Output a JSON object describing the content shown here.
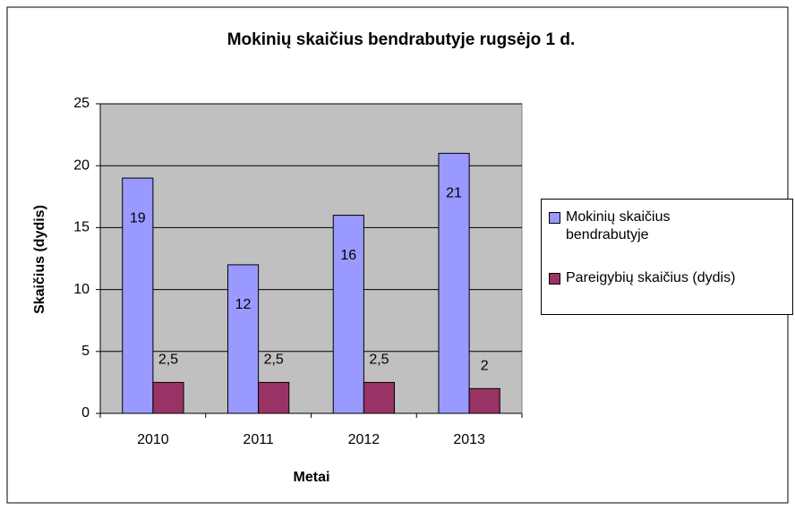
{
  "chart_data": {
    "type": "bar",
    "title": "Mokinių skaičius bendrabutyje rugsėjo 1 d.",
    "x_label": "Metai",
    "y_label": "Skaičius (dydis)",
    "categories": [
      "2010",
      "2011",
      "2012",
      "2013"
    ],
    "series": [
      {
        "name": "Mokinių skaičius bendrabutyje",
        "color": "#9999ff",
        "values": [
          19,
          12,
          16,
          21
        ]
      },
      {
        "name": "Pareigybių skaičius (dydis)",
        "color": "#993366",
        "values": [
          2.5,
          2.5,
          2.5,
          2
        ],
        "value_labels": [
          "2,5",
          "2,5",
          "2,5",
          "2"
        ]
      }
    ],
    "ylim": [
      0,
      25
    ],
    "yticks": [
      0,
      5,
      10,
      15,
      20,
      25
    ],
    "grid": true,
    "legend": "right"
  }
}
